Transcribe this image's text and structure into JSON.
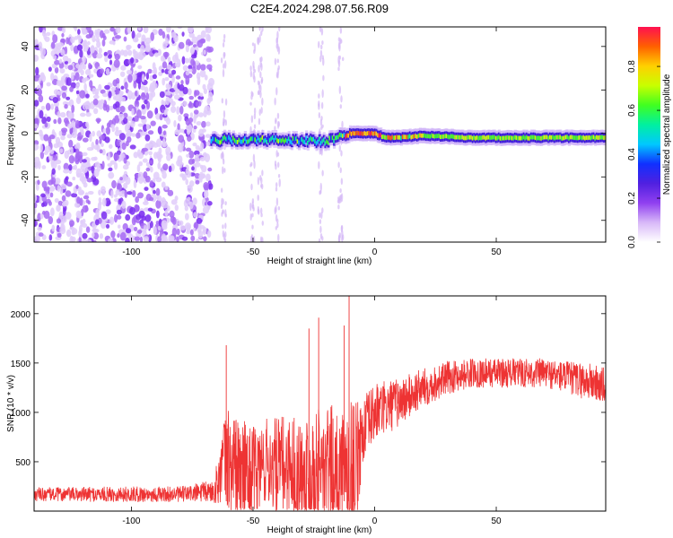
{
  "title": "C2E4.2024.298.07.56.R09",
  "chart_data": [
    {
      "type": "heatmap",
      "xlabel": "Height of straight line (km)",
      "ylabel": "Frequency (Hz)",
      "xlim": [
        -140,
        95
      ],
      "ylim": [
        -50,
        49
      ],
      "xticks": [
        "-100",
        "-50",
        "0",
        "50"
      ],
      "xtick_values": [
        -100,
        -50,
        0,
        50
      ],
      "yticks": [
        "40",
        "20",
        "0",
        "-20",
        "-40"
      ],
      "ytick_values": [
        40,
        20,
        0,
        -20,
        -40
      ],
      "colorbar": {
        "label": "Normalized spectral amplitude",
        "range": [
          0,
          0.98
        ],
        "ticks": [
          "0.0",
          "0.2",
          "0.4",
          "0.6",
          "0.8"
        ],
        "tick_values": [
          0.0,
          0.2,
          0.4,
          0.6,
          0.8
        ],
        "colormap": [
          "#ffffff",
          "#d8b8f8",
          "#9040f0",
          "#5020e0",
          "#1030ff",
          "#00c8ff",
          "#00f0a0",
          "#40ff20",
          "#c8ff00",
          "#ffd000",
          "#ff6000",
          "#ff1050"
        ]
      },
      "ridge": {
        "description_points_x": [
          -67,
          -50,
          -30,
          -20,
          -15,
          -10,
          -5,
          0,
          5,
          10,
          20,
          40,
          60,
          80,
          95
        ],
        "description_points_freq": [
          -3,
          -3,
          -3,
          -4,
          -2,
          0,
          0,
          0,
          -2,
          -2,
          -1,
          -2,
          -2,
          -2,
          -2
        ]
      },
      "noise_region_x": [
        -140,
        -67
      ]
    },
    {
      "type": "line",
      "color": "#ee3333",
      "xlabel": "Height of straight line (km)",
      "ylabel": "SNR (10 * v/v)",
      "xlim": [
        -140,
        95
      ],
      "ylim": [
        0,
        2180
      ],
      "xticks": [
        "-100",
        "-50",
        "0",
        "50"
      ],
      "xtick_values": [
        -100,
        -50,
        0,
        50
      ],
      "yticks": [
        "500",
        "1000",
        "1500",
        "2000"
      ],
      "ytick_values": [
        500,
        1000,
        1500,
        2000
      ],
      "envelope_x": [
        -140,
        -100,
        -80,
        -66,
        -62,
        -60,
        -55,
        -50,
        -45,
        -40,
        -35,
        -30,
        -25,
        -20,
        -15,
        -12,
        -10,
        -8,
        -5,
        0,
        10,
        20,
        30,
        40,
        50,
        60,
        70,
        80,
        90,
        95
      ],
      "envelope_mid": [
        170,
        170,
        170,
        200,
        500,
        500,
        400,
        350,
        500,
        450,
        450,
        400,
        450,
        400,
        350,
        300,
        300,
        400,
        800,
        1000,
        1100,
        1250,
        1350,
        1400,
        1400,
        1400,
        1400,
        1350,
        1300,
        1250
      ],
      "envelope_amp": [
        70,
        80,
        80,
        120,
        450,
        600,
        550,
        500,
        450,
        500,
        550,
        550,
        600,
        700,
        700,
        800,
        1000,
        700,
        350,
        300,
        250,
        200,
        170,
        150,
        150,
        150,
        150,
        170,
        200,
        200
      ],
      "spikes_x": [
        -61,
        -27,
        -23,
        -12.5,
        -10.5
      ],
      "spikes_y": [
        1680,
        1850,
        1960,
        1880,
        2180
      ]
    }
  ]
}
